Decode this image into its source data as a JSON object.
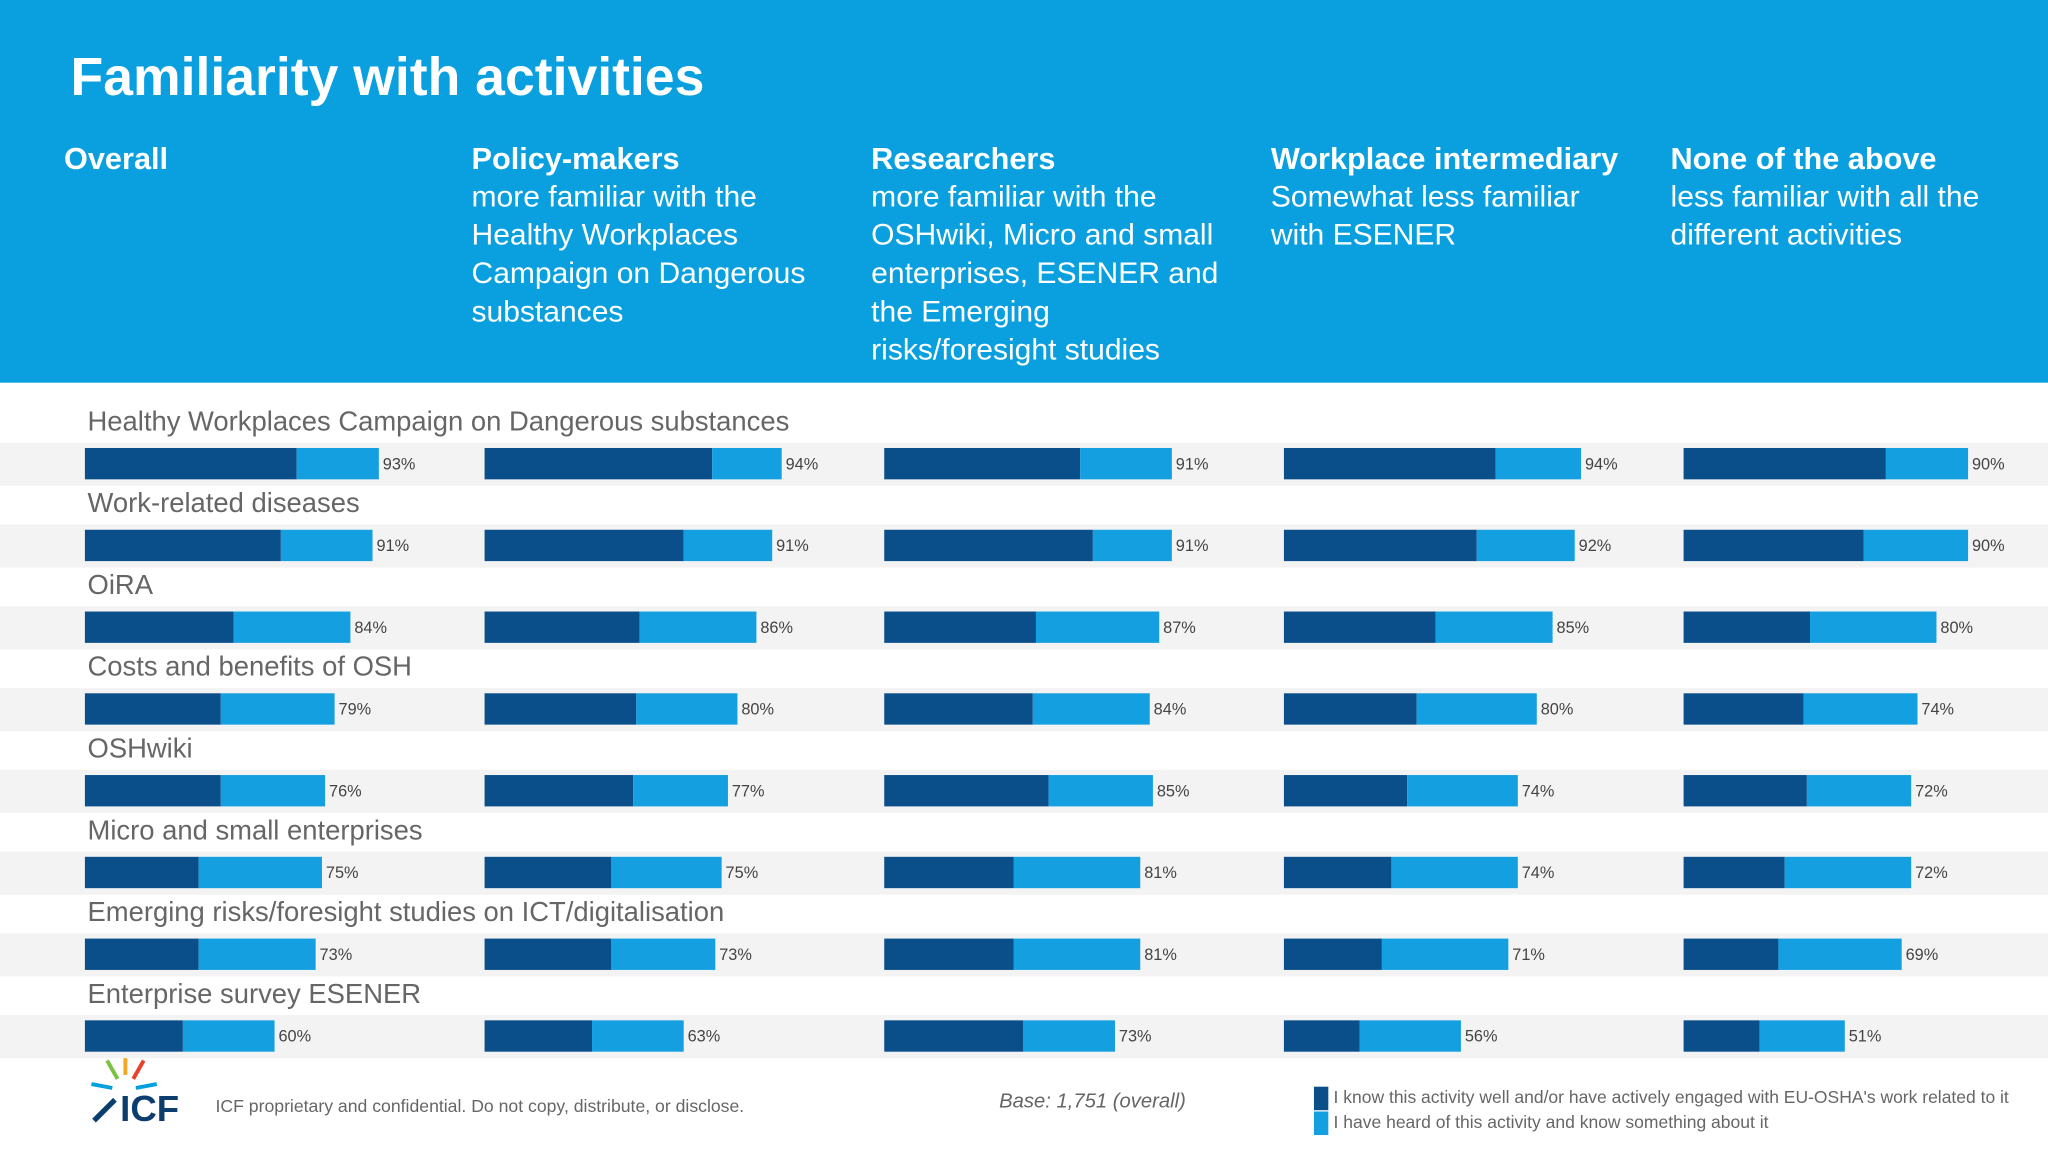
{
  "title": "Familiarity with activities",
  "categories": [
    "Healthy Workplaces Campaign on Dangerous substances",
    "Work-related diseases",
    "OiRA",
    "Costs and benefits of OSH",
    "OSHwiki",
    "Micro and small enterprises",
    "Emerging risks/foresight studies on ICT/digitalisation",
    "Enterprise survey ESENER"
  ],
  "legend": [
    {
      "name": "I know this activity well and/or have actively engaged with EU-OSHA's work related to it",
      "color": "#0b4f8a"
    },
    {
      "name": "I have heard of this activity and know something about it",
      "color": "#139fe0"
    }
  ],
  "footer": "ICF proprietary and confidential. Do not copy, distribute, or disclose.",
  "logo": "ICF",
  "base": "Base: 1,751 (overall)",
  "chart_data": [
    {
      "type": "bar",
      "title": "Overall",
      "subtitle": [],
      "xlim": [
        0,
        100
      ],
      "series": [
        {
          "color": "#0b4f8a",
          "values": [
            67,
            62,
            47,
            43,
            43,
            36,
            36,
            31
          ]
        },
        {
          "color": "#139fe0",
          "values": [
            26,
            29,
            37,
            36,
            33,
            39,
            37,
            29
          ]
        }
      ],
      "totals": [
        93,
        91,
        84,
        79,
        76,
        75,
        73,
        60
      ],
      "total_labels": [
        "93%",
        "91%",
        "84%",
        "79%",
        "76%",
        "75%",
        "73%",
        "60%"
      ]
    },
    {
      "type": "bar",
      "title": "Policy-makers",
      "subtitle": [
        "more familiar with the",
        "Healthy Workplaces",
        "Campaign on Dangerous",
        "substances"
      ],
      "xlim": [
        0,
        100
      ],
      "series": [
        {
          "color": "#0b4f8a",
          "values": [
            72,
            63,
            49,
            48,
            47,
            40,
            40,
            34
          ]
        },
        {
          "color": "#139fe0",
          "values": [
            22,
            28,
            37,
            32,
            30,
            35,
            33,
            29
          ]
        }
      ],
      "totals": [
        94,
        91,
        86,
        80,
        77,
        75,
        73,
        63
      ],
      "total_labels": [
        "94%",
        "91%",
        "86%",
        "80%",
        "77%",
        "75%",
        "73%",
        "63%"
      ]
    },
    {
      "type": "bar",
      "title": "Researchers",
      "subtitle": [
        "more familiar with the",
        "OSHwiki, Micro and small",
        "enterprises, ESENER and",
        "the Emerging",
        "risks/foresight studies"
      ],
      "xlim": [
        0,
        100
      ],
      "series": [
        {
          "color": "#0b4f8a",
          "values": [
            62,
            66,
            48,
            47,
            52,
            41,
            41,
            44
          ]
        },
        {
          "color": "#139fe0",
          "values": [
            29,
            25,
            39,
            37,
            33,
            40,
            40,
            29
          ]
        }
      ],
      "totals": [
        91,
        91,
        87,
        84,
        85,
        81,
        81,
        73
      ],
      "total_labels": [
        "91%",
        "91%",
        "87%",
        "84%",
        "85%",
        "81%",
        "81%",
        "73%"
      ]
    },
    {
      "type": "bar",
      "title": "Workplace intermediary",
      "subtitle": [
        "Somewhat less familiar",
        "with ESENER"
      ],
      "xlim": [
        0,
        100
      ],
      "series": [
        {
          "color": "#0b4f8a",
          "values": [
            67,
            61,
            48,
            42,
            39,
            34,
            31,
            24
          ]
        },
        {
          "color": "#139fe0",
          "values": [
            27,
            31,
            37,
            38,
            35,
            40,
            40,
            32
          ]
        }
      ],
      "totals": [
        94,
        92,
        85,
        80,
        74,
        74,
        71,
        56
      ],
      "total_labels": [
        "94%",
        "92%",
        "85%",
        "80%",
        "74%",
        "74%",
        "71%",
        "56%"
      ]
    },
    {
      "type": "bar",
      "title": "None of the above",
      "subtitle": [
        "less familiar with all the",
        "different activities"
      ],
      "xlim": [
        0,
        100
      ],
      "series": [
        {
          "color": "#0b4f8a",
          "values": [
            64,
            57,
            40,
            38,
            39,
            32,
            30,
            24
          ]
        },
        {
          "color": "#139fe0",
          "values": [
            26,
            33,
            40,
            36,
            33,
            40,
            39,
            27
          ]
        }
      ],
      "totals": [
        90,
        90,
        80,
        74,
        72,
        72,
        69,
        51
      ],
      "total_labels": [
        "90%",
        "90%",
        "80%",
        "74%",
        "72%",
        "72%",
        "69%",
        "51%"
      ]
    }
  ]
}
